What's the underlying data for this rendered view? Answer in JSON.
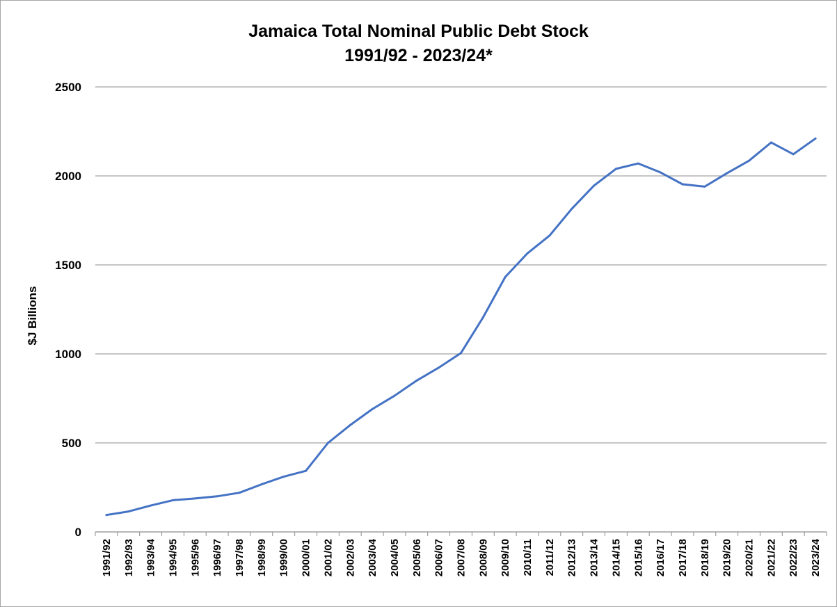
{
  "chart_data": {
    "type": "line",
    "title": "Jamaica Total Nominal Public Debt Stock",
    "subtitle": "1991/92 - 2023/24*",
    "xlabel": "",
    "ylabel": "$J Billions",
    "ylim": [
      0,
      2500
    ],
    "yticks": [
      "0",
      "500",
      "1000",
      "1500",
      "2000",
      "2500"
    ],
    "grid": true,
    "legend": "none",
    "line_color": "#4472c4",
    "categories": [
      "1991/92",
      "1992/93",
      "1993/94",
      "1994/95",
      "1995/96",
      "1996/97",
      "1997/98",
      "1998/99",
      "1999/00",
      "2000/01",
      "2001/02",
      "2002/03",
      "2003/04",
      "2004/05",
      "2005/06",
      "2006/07",
      "2007/08",
      "2008/09",
      "2009/10",
      "2010/11",
      "2011/12",
      "2012/13",
      "2013/14",
      "2014/15",
      "2015/16",
      "2016/17",
      "2017/18",
      "2018/19",
      "2019/20",
      "2020/21",
      "2021/22",
      "2022/23",
      "2023/24"
    ],
    "series": [
      {
        "values": [
          95,
          115,
          148,
          178,
          188,
          200,
          220,
          267,
          310,
          343,
          500,
          600,
          690,
          765,
          850,
          923,
          1005,
          1205,
          1432,
          1565,
          1665,
          1815,
          1945,
          2040,
          2070,
          2020,
          1953,
          1940,
          2015,
          2085,
          2188,
          2122,
          2210
        ]
      }
    ]
  }
}
